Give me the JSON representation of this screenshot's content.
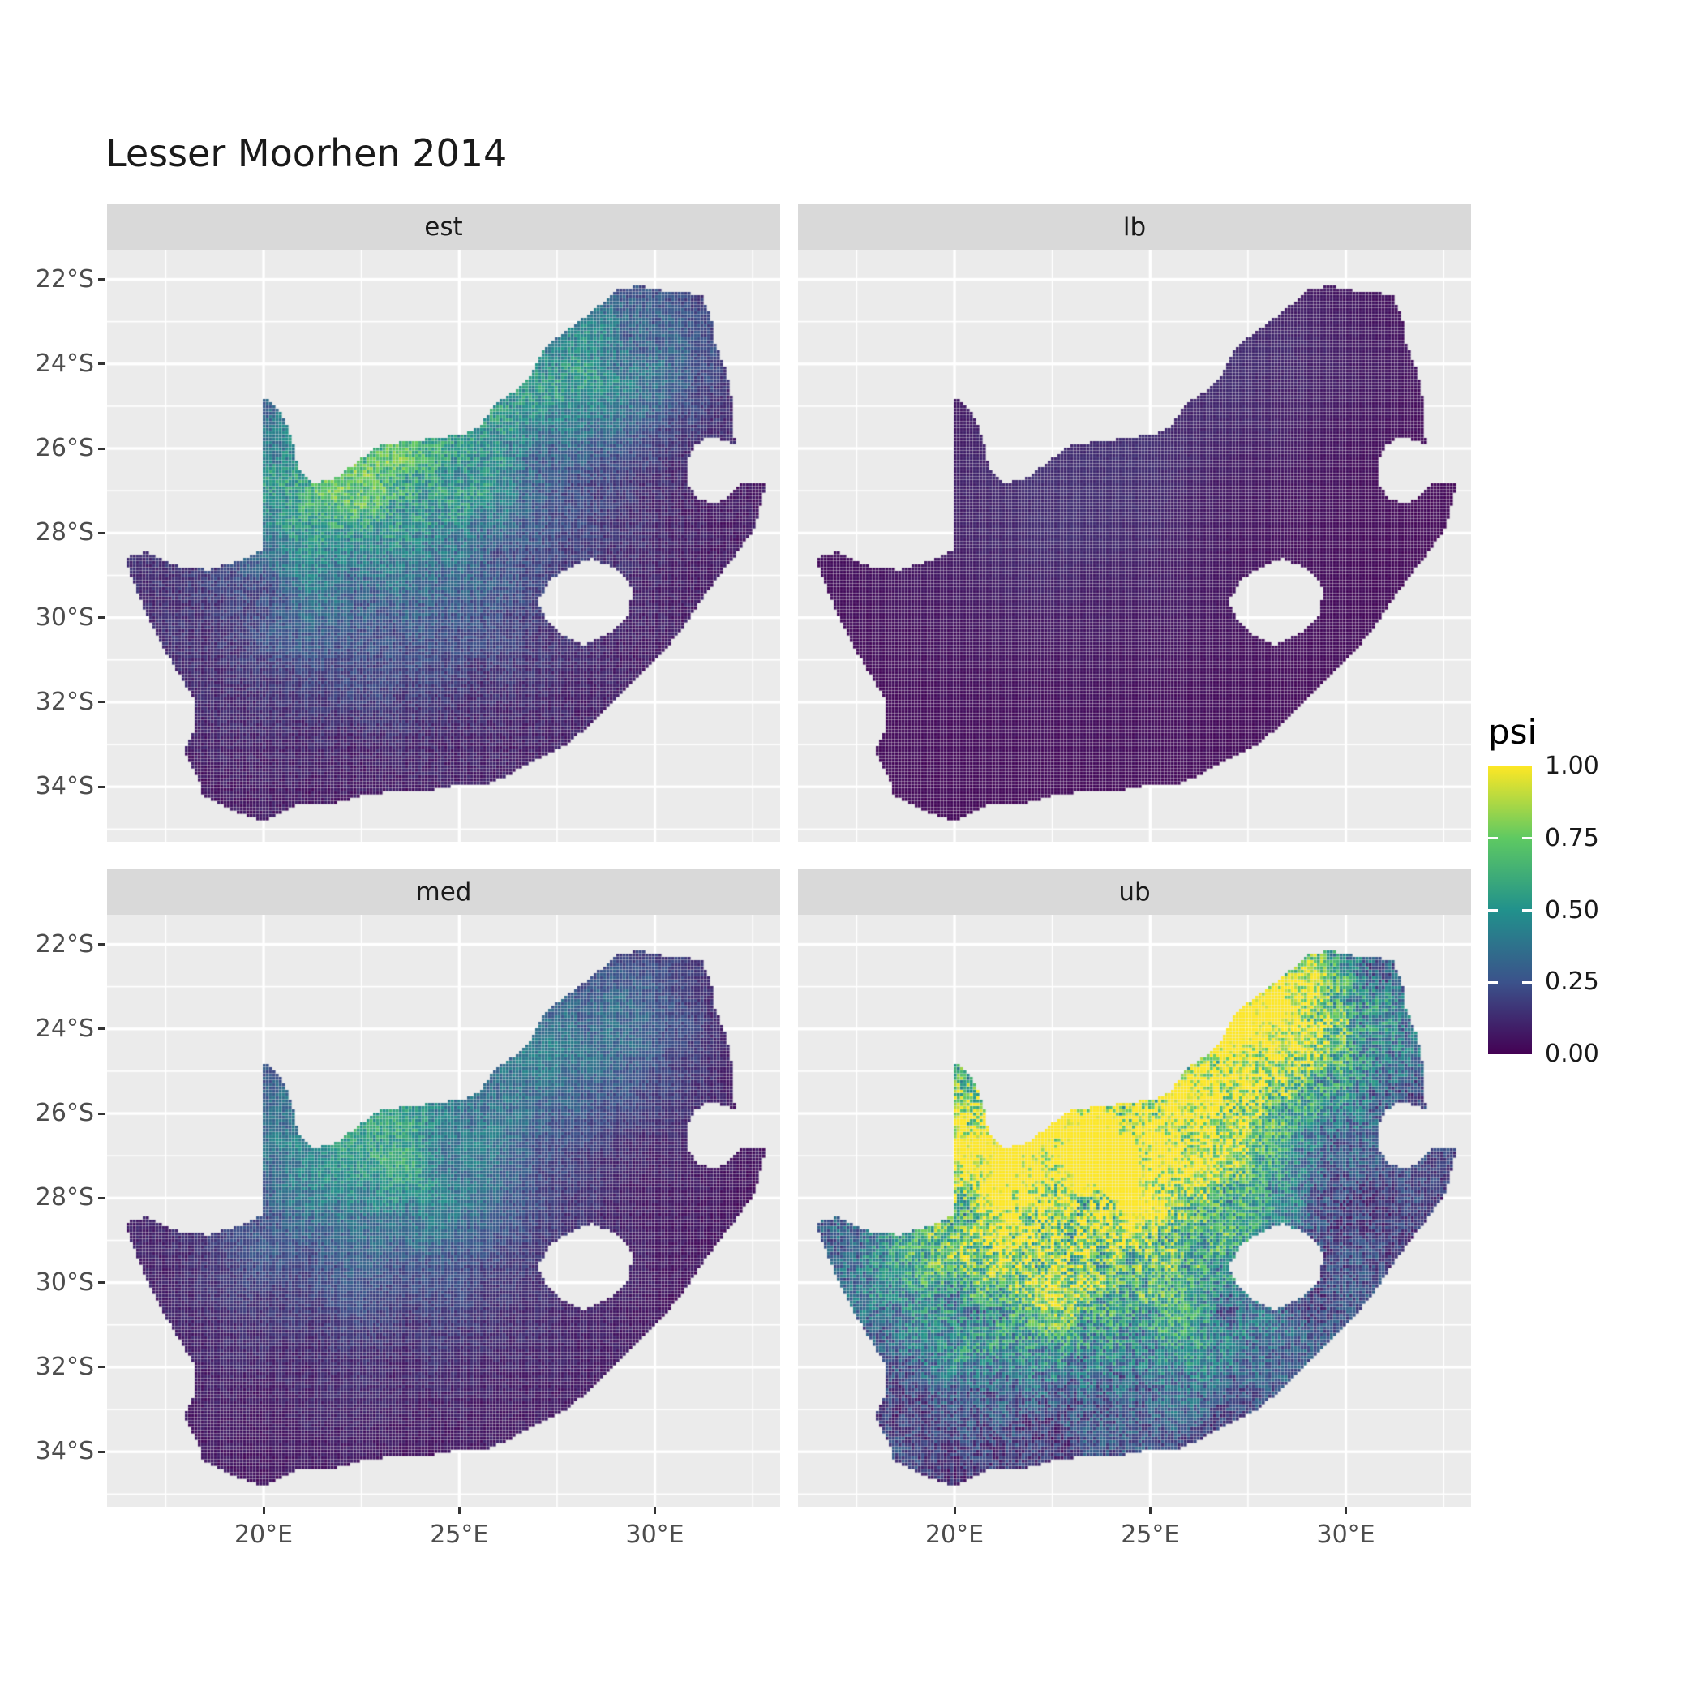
{
  "chart_data": {
    "type": "heatmap",
    "title": "Lesser Moorhen 2014",
    "facets": [
      {
        "label": "est",
        "base": 0.05,
        "weights": [
          0.55,
          0.38,
          0.15
        ],
        "noise": 0.3,
        "speckle": 0.18
      },
      {
        "label": "lb",
        "base": 0.02,
        "weights": [
          0.1,
          0.08,
          0.03
        ],
        "noise": 0.15,
        "speckle": 0.07
      },
      {
        "label": "med",
        "base": 0.04,
        "weights": [
          0.45,
          0.3,
          0.12
        ],
        "noise": 0.28,
        "speckle": 0.16
      },
      {
        "label": "ub",
        "base": 0.12,
        "weights": [
          1.1,
          0.8,
          0.5
        ],
        "noise": 0.5,
        "speckle": 0.3
      }
    ],
    "fields": [
      {
        "lon": 22.8,
        "lat": -26.5,
        "sx": 2.8,
        "sy": 1.9
      },
      {
        "lon": 27.8,
        "lat": -23.8,
        "sx": 2.6,
        "sy": 1.6
      },
      {
        "lon": 23.0,
        "lat": -29.8,
        "sx": 3.8,
        "sy": 2.3
      }
    ],
    "lon_range": [
      16.0,
      33.2
    ],
    "lat_range": [
      -35.3,
      -21.3
    ],
    "x_ticks": [
      {
        "value": 20,
        "label": "20°E"
      },
      {
        "value": 25,
        "label": "25°E"
      },
      {
        "value": 30,
        "label": "30°E"
      }
    ],
    "y_ticks": [
      {
        "value": -22,
        "label": "22°S"
      },
      {
        "value": -24,
        "label": "24°S"
      },
      {
        "value": -26,
        "label": "26°S"
      },
      {
        "value": -28,
        "label": "28°S"
      },
      {
        "value": -30,
        "label": "30°S"
      },
      {
        "value": -32,
        "label": "32°S"
      },
      {
        "value": -34,
        "label": "34°S"
      }
    ],
    "legend": {
      "title": "psi",
      "ticks": [
        {
          "value": 1.0,
          "label": "1.00"
        },
        {
          "value": 0.75,
          "label": "0.75"
        },
        {
          "value": 0.5,
          "label": "0.50"
        },
        {
          "value": 0.25,
          "label": "0.25"
        },
        {
          "value": 0.0,
          "label": "0.00"
        }
      ],
      "viridis_stops": [
        "#440154",
        "#3B528B",
        "#21918C",
        "#5EC962",
        "#FDE725"
      ]
    },
    "style": {
      "panel_bg": "#EBEBEB",
      "strip_bg": "#D9D9D9",
      "grid_color": "#FFFFFF",
      "tick_mark_color": "#333333",
      "axis_text_color": "#4D4D4D",
      "strip_text_color": "#1A1A1A",
      "title_color": "#1A1A1A"
    },
    "map_outline": [
      [
        16.45,
        -28.58
      ],
      [
        17.05,
        -28.45
      ],
      [
        17.75,
        -28.77
      ],
      [
        18.6,
        -28.87
      ],
      [
        19.4,
        -28.65
      ],
      [
        19.98,
        -28.42
      ],
      [
        19.98,
        -24.76
      ],
      [
        20.45,
        -25.15
      ],
      [
        20.75,
        -25.8
      ],
      [
        20.9,
        -26.5
      ],
      [
        21.3,
        -26.84
      ],
      [
        21.9,
        -26.67
      ],
      [
        22.55,
        -26.2
      ],
      [
        22.9,
        -25.95
      ],
      [
        23.6,
        -25.85
      ],
      [
        24.4,
        -25.75
      ],
      [
        25.1,
        -25.66
      ],
      [
        25.55,
        -25.48
      ],
      [
        25.9,
        -24.95
      ],
      [
        26.45,
        -24.62
      ],
      [
        26.85,
        -24.25
      ],
      [
        27.15,
        -23.65
      ],
      [
        27.75,
        -23.2
      ],
      [
        28.35,
        -22.8
      ],
      [
        29.05,
        -22.25
      ],
      [
        29.65,
        -22.15
      ],
      [
        30.35,
        -22.3
      ],
      [
        31.2,
        -22.35
      ],
      [
        31.45,
        -22.95
      ],
      [
        31.55,
        -23.55
      ],
      [
        31.8,
        -24.1
      ],
      [
        31.95,
        -24.7
      ],
      [
        32.0,
        -25.35
      ],
      [
        32.05,
        -25.9
      ],
      [
        31.4,
        -25.72
      ],
      [
        31.0,
        -25.95
      ],
      [
        30.8,
        -26.4
      ],
      [
        30.85,
        -26.85
      ],
      [
        31.1,
        -27.2
      ],
      [
        31.6,
        -27.3
      ],
      [
        31.95,
        -27.1
      ],
      [
        32.13,
        -26.86
      ],
      [
        32.85,
        -26.85
      ],
      [
        32.55,
        -27.9
      ],
      [
        32.0,
        -28.6
      ],
      [
        31.3,
        -29.45
      ],
      [
        30.75,
        -30.2
      ],
      [
        30.1,
        -30.95
      ],
      [
        29.35,
        -31.65
      ],
      [
        28.6,
        -32.3
      ],
      [
        27.85,
        -32.95
      ],
      [
        27.0,
        -33.35
      ],
      [
        26.2,
        -33.75
      ],
      [
        25.65,
        -33.98
      ],
      [
        25.0,
        -33.95
      ],
      [
        24.2,
        -34.1
      ],
      [
        23.4,
        -34.1
      ],
      [
        22.6,
        -34.2
      ],
      [
        21.8,
        -34.4
      ],
      [
        20.9,
        -34.4
      ],
      [
        20.0,
        -34.82
      ],
      [
        19.3,
        -34.6
      ],
      [
        18.8,
        -34.35
      ],
      [
        18.45,
        -34.2
      ],
      [
        18.35,
        -33.85
      ],
      [
        17.95,
        -33.15
      ],
      [
        18.25,
        -32.6
      ],
      [
        18.2,
        -31.9
      ],
      [
        17.55,
        -30.9
      ],
      [
        17.1,
        -30.1
      ],
      [
        16.75,
        -29.35
      ]
    ],
    "lesotho_hole": [
      [
        27.01,
        -29.63
      ],
      [
        27.35,
        -29.1
      ],
      [
        27.75,
        -28.85
      ],
      [
        28.4,
        -28.6
      ],
      [
        29.1,
        -28.9
      ],
      [
        29.45,
        -29.35
      ],
      [
        29.3,
        -29.95
      ],
      [
        28.9,
        -30.35
      ],
      [
        28.2,
        -30.65
      ],
      [
        27.6,
        -30.4
      ],
      [
        27.2,
        -30.0
      ]
    ]
  }
}
